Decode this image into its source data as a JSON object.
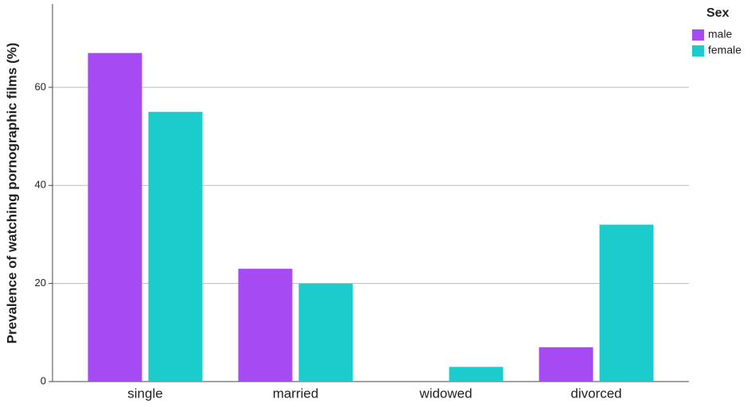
{
  "chart_data": {
    "type": "bar",
    "y_label": "Prevalence of watching pornographic films (%)",
    "categories": [
      "single",
      "married",
      "widowed",
      "divorced"
    ],
    "series": [
      {
        "name": "male",
        "color": "#a64bf4",
        "values": [
          67,
          23,
          0,
          7
        ]
      },
      {
        "name": "female",
        "color": "#1ccccc",
        "values": [
          55,
          20,
          3,
          32
        ]
      }
    ],
    "legend_title": "Sex",
    "legend": "top-right",
    "ylim": [
      0,
      77
    ],
    "yticks": [
      0,
      20,
      40,
      60
    ],
    "grid": true
  }
}
